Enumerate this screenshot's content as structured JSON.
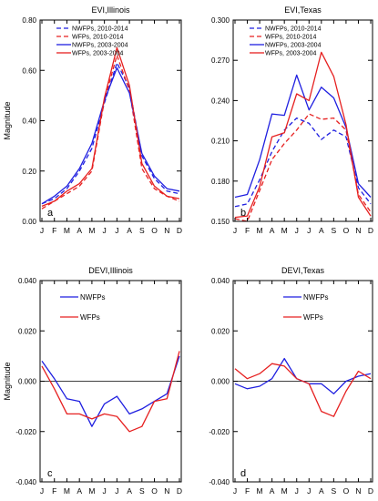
{
  "chart_data": [
    {
      "type": "line",
      "title": "EVI,Illinois",
      "panel_label": "a",
      "ylabel": "Magnitude",
      "categories": [
        "J",
        "F",
        "M",
        "A",
        "M",
        "J",
        "J",
        "A",
        "S",
        "O",
        "N",
        "D"
      ],
      "ylim": [
        0,
        0.8
      ],
      "yticks": [
        "0.00",
        "0.20",
        "0.40",
        "0.60",
        "0.80"
      ],
      "ytick_values": [
        0,
        0.2,
        0.4,
        0.6,
        0.8
      ],
      "legend_position": "top-center",
      "series": [
        {
          "name": "NWFPs, 2010-2014",
          "color": "#1f1fe0",
          "dash": true,
          "values": [
            0.07,
            0.09,
            0.13,
            0.2,
            0.29,
            0.47,
            0.63,
            0.53,
            0.26,
            0.17,
            0.12,
            0.11
          ]
        },
        {
          "name": "WFPs, 2010-2014",
          "color": "#e62020",
          "dash": true,
          "values": [
            0.05,
            0.08,
            0.11,
            0.14,
            0.2,
            0.48,
            0.66,
            0.52,
            0.21,
            0.13,
            0.1,
            0.08
          ]
        },
        {
          "name": "NWFPs, 2003-2004",
          "color": "#1f1fe0",
          "dash": false,
          "values": [
            0.07,
            0.1,
            0.14,
            0.21,
            0.31,
            0.48,
            0.61,
            0.51,
            0.27,
            0.18,
            0.13,
            0.12
          ]
        },
        {
          "name": "WFPs, 2003-2004",
          "color": "#e62020",
          "dash": false,
          "values": [
            0.06,
            0.08,
            0.12,
            0.15,
            0.21,
            0.49,
            0.69,
            0.54,
            0.23,
            0.14,
            0.1,
            0.09
          ]
        }
      ]
    },
    {
      "type": "line",
      "title": "EVI,Texas",
      "panel_label": "b",
      "ylabel": "",
      "categories": [
        "J",
        "F",
        "M",
        "A",
        "M",
        "J",
        "J",
        "A",
        "S",
        "O",
        "N",
        "D"
      ],
      "ylim": [
        0.15,
        0.3
      ],
      "yticks": [
        "0.150",
        "0.180",
        "0.210",
        "0.240",
        "0.270",
        "0.300"
      ],
      "ytick_values": [
        0.15,
        0.18,
        0.21,
        0.24,
        0.27,
        0.3
      ],
      "legend_position": "top-center",
      "series": [
        {
          "name": "NWFPs, 2010-2014",
          "color": "#1f1fe0",
          "dash": true,
          "values": [
            0.161,
            0.163,
            0.181,
            0.202,
            0.218,
            0.227,
            0.223,
            0.211,
            0.218,
            0.213,
            0.175,
            0.163
          ]
        },
        {
          "name": "WFPs, 2010-2014",
          "color": "#e62020",
          "dash": true,
          "values": [
            0.152,
            0.15,
            0.173,
            0.196,
            0.208,
            0.218,
            0.23,
            0.226,
            0.227,
            0.218,
            0.17,
            0.157
          ]
        },
        {
          "name": "NWFPs, 2003-2004",
          "color": "#1f1fe0",
          "dash": false,
          "values": [
            0.168,
            0.17,
            0.196,
            0.23,
            0.229,
            0.259,
            0.233,
            0.25,
            0.242,
            0.22,
            0.178,
            0.168
          ]
        },
        {
          "name": "WFPs, 2003-2004",
          "color": "#e62020",
          "dash": false,
          "values": [
            0.153,
            0.154,
            0.176,
            0.213,
            0.216,
            0.245,
            0.24,
            0.276,
            0.258,
            0.222,
            0.168,
            0.154
          ]
        }
      ]
    },
    {
      "type": "line",
      "title": "DEVI,Illinois",
      "panel_label": "c",
      "ylabel": "Magnitude",
      "categories": [
        "J",
        "F",
        "M",
        "A",
        "M",
        "J",
        "J",
        "A",
        "S",
        "O",
        "N",
        "D"
      ],
      "ylim": [
        -0.04,
        0.04
      ],
      "yticks": [
        "-0.040",
        "-0.020",
        "0.000",
        "0.020",
        "0.040"
      ],
      "ytick_values": [
        -0.04,
        -0.02,
        0,
        0.02,
        0.04
      ],
      "zero_line": true,
      "legend_position": "top-left",
      "series": [
        {
          "name": "NWFPs",
          "color": "#1f1fe0",
          "dash": false,
          "values": [
            0.008,
            0.001,
            -0.007,
            -0.008,
            -0.018,
            -0.009,
            -0.006,
            -0.013,
            -0.011,
            -0.008,
            -0.005,
            0.01
          ]
        },
        {
          "name": "WFPs",
          "color": "#e62020",
          "dash": false,
          "values": [
            0.006,
            -0.003,
            -0.013,
            -0.013,
            -0.015,
            -0.013,
            -0.014,
            -0.02,
            -0.018,
            -0.008,
            -0.007,
            0.012
          ]
        }
      ]
    },
    {
      "type": "line",
      "title": "DEVI,Texas",
      "panel_label": "d",
      "ylabel": "",
      "categories": [
        "J",
        "F",
        "M",
        "A",
        "M",
        "J",
        "J",
        "A",
        "S",
        "O",
        "N",
        "D"
      ],
      "ylim": [
        -0.04,
        0.04
      ],
      "yticks": [
        "-0.040",
        "-0.020",
        "0.000",
        "0.020",
        "0.040"
      ],
      "ytick_values": [
        -0.04,
        -0.02,
        0,
        0.02,
        0.04
      ],
      "zero_line": true,
      "legend_position": "top-center",
      "series": [
        {
          "name": "NWFPs",
          "color": "#1f1fe0",
          "dash": false,
          "values": [
            -0.001,
            -0.003,
            -0.002,
            0.001,
            0.009,
            0.001,
            -0.001,
            -0.001,
            -0.005,
            0.0,
            0.002,
            0.003
          ]
        },
        {
          "name": "WFPs",
          "color": "#e62020",
          "dash": false,
          "values": [
            0.005,
            0.001,
            0.003,
            0.007,
            0.006,
            0.001,
            -0.001,
            -0.012,
            -0.014,
            -0.004,
            0.004,
            0.001
          ]
        }
      ]
    }
  ]
}
